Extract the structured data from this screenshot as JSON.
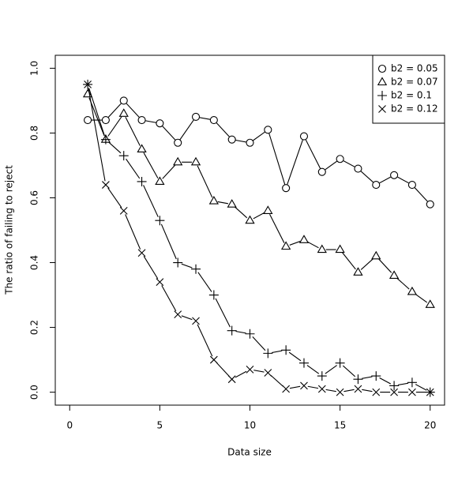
{
  "chart_data": {
    "type": "line",
    "x_label": "Data size",
    "y_label": "The ratio of failing to reject",
    "x": [
      1,
      2,
      3,
      4,
      5,
      6,
      7,
      8,
      9,
      10,
      11,
      12,
      13,
      14,
      15,
      16,
      17,
      18,
      19,
      20
    ],
    "series": [
      {
        "name": "b2 = 0.05",
        "color": "#000000",
        "marker": "circle",
        "values": [
          0.84,
          0.84,
          0.9,
          0.84,
          0.83,
          0.77,
          0.85,
          0.84,
          0.78,
          0.77,
          0.81,
          0.63,
          0.79,
          0.68,
          0.72,
          0.69,
          0.64,
          0.67,
          0.64,
          0.58
        ]
      },
      {
        "name": "b2 = 0.07",
        "color": "#000000",
        "marker": "triangle",
        "values": [
          0.92,
          0.78,
          0.86,
          0.75,
          0.65,
          0.71,
          0.71,
          0.59,
          0.58,
          0.53,
          0.56,
          0.45,
          0.47,
          0.44,
          0.44,
          0.37,
          0.42,
          0.36,
          0.31,
          0.27
        ]
      },
      {
        "name": "b2 = 0.1",
        "color": "#000000",
        "marker": "plus",
        "values": [
          0.95,
          0.78,
          0.73,
          0.65,
          0.53,
          0.4,
          0.38,
          0.3,
          0.19,
          0.18,
          0.12,
          0.13,
          0.09,
          0.05,
          0.09,
          0.04,
          0.05,
          0.02,
          0.03,
          0.0
        ]
      },
      {
        "name": "b2 = 0.12",
        "color": "#000000",
        "marker": "cross",
        "values": [
          0.95,
          0.64,
          0.56,
          0.43,
          0.34,
          0.24,
          0.22,
          0.1,
          0.04,
          0.07,
          0.06,
          0.01,
          0.02,
          0.01,
          0.0,
          0.01,
          0.0,
          0.0,
          0.0,
          0.0
        ]
      }
    ],
    "xlim": [
      -0.8,
      20.8
    ],
    "xticks": [
      0,
      5,
      10,
      15,
      20
    ],
    "ylim": [
      -0.04,
      1.04
    ],
    "yticks": [
      {
        "value": 0,
        "label": "0.0"
      },
      0.2,
      0.4,
      0.6,
      0.8,
      {
        "value": 1,
        "label": "1.0"
      }
    ],
    "legend": "top-right",
    "grid": false
  }
}
